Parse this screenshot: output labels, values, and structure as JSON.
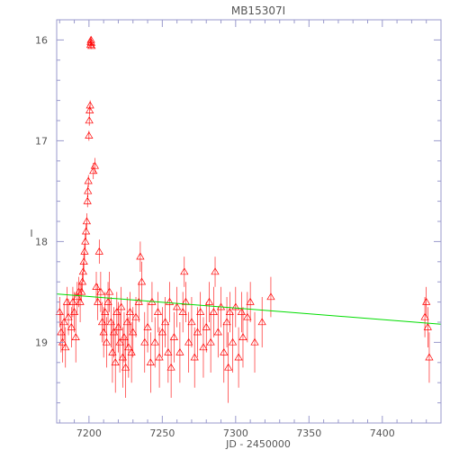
{
  "chart_data": {
    "type": "scatter",
    "title": "MB15307I",
    "xlabel": "JD - 2450000",
    "ylabel": "I",
    "xlim": [
      7178,
      7440
    ],
    "ylim": [
      19.8,
      15.8
    ],
    "y_inverted": true,
    "x_ticks": [
      7200,
      7250,
      7300,
      7350,
      7400
    ],
    "y_ticks": [
      16,
      17,
      18,
      19
    ],
    "grid": false,
    "legend": "none",
    "colors": {
      "points": "#ff0000",
      "trend": "#00dd00",
      "axes": "#9999cc",
      "text": "#555555"
    },
    "trend_line": {
      "x": [
        7178,
        7440
      ],
      "y": [
        18.52,
        18.82
      ]
    },
    "series": [
      {
        "marker": "triangle-open",
        "points": [
          [
            7180,
            18.7,
            0.15
          ],
          [
            7181,
            18.9,
            0.2
          ],
          [
            7182,
            19.0,
            0.2
          ],
          [
            7183,
            18.8,
            0.18
          ],
          [
            7184,
            19.05,
            0.2
          ],
          [
            7185,
            18.6,
            0.15
          ],
          [
            7186,
            18.75,
            0.18
          ],
          [
            7188,
            18.85,
            0.2
          ],
          [
            7189,
            18.6,
            0.15
          ],
          [
            7190,
            18.7,
            0.2
          ],
          [
            7191,
            18.95,
            0.25
          ],
          [
            7192,
            18.55,
            0.15
          ],
          [
            7193,
            18.5,
            0.15
          ],
          [
            7194,
            18.6,
            0.2
          ],
          [
            7195,
            18.5,
            0.1
          ],
          [
            7195.5,
            18.4,
            0.1
          ],
          [
            7196,
            18.3,
            0.1
          ],
          [
            7196.5,
            18.2,
            0.1
          ],
          [
            7197,
            18.1,
            0.08
          ],
          [
            7197.5,
            18.0,
            0.08
          ],
          [
            7198,
            17.9,
            0.08
          ],
          [
            7198.5,
            17.8,
            0.08
          ],
          [
            7199,
            17.6,
            0.06
          ],
          [
            7199.3,
            17.5,
            0.06
          ],
          [
            7199.6,
            17.4,
            0.06
          ],
          [
            7200,
            16.95,
            0.05
          ],
          [
            7200.2,
            16.8,
            0.05
          ],
          [
            7200.5,
            16.7,
            0.05
          ],
          [
            7200.8,
            16.65,
            0.05
          ],
          [
            7201,
            16.05,
            0.03
          ],
          [
            7201.2,
            16.02,
            0.03
          ],
          [
            7201.4,
            16.0,
            0.03
          ],
          [
            7201.6,
            16.03,
            0.03
          ],
          [
            7201.8,
            16.06,
            0.03
          ],
          [
            7203,
            17.3,
            0.08
          ],
          [
            7204,
            17.25,
            0.08
          ],
          [
            7205,
            18.45,
            0.15
          ],
          [
            7206,
            18.6,
            0.18
          ],
          [
            7207,
            18.1,
            0.12
          ],
          [
            7208,
            18.5,
            0.2
          ],
          [
            7209,
            18.8,
            0.2
          ],
          [
            7210,
            18.9,
            0.25
          ],
          [
            7211,
            18.7,
            0.2
          ],
          [
            7212,
            19.0,
            0.25
          ],
          [
            7213,
            18.6,
            0.2
          ],
          [
            7214,
            18.5,
            0.2
          ],
          [
            7215,
            18.8,
            0.25
          ],
          [
            7216,
            19.1,
            0.3
          ],
          [
            7217,
            18.9,
            0.25
          ],
          [
            7218,
            19.2,
            0.3
          ],
          [
            7219,
            18.7,
            0.2
          ],
          [
            7220,
            18.85,
            0.25
          ],
          [
            7221,
            19.0,
            0.3
          ],
          [
            7222,
            18.65,
            0.2
          ],
          [
            7223,
            19.15,
            0.3
          ],
          [
            7224,
            18.95,
            0.25
          ],
          [
            7225,
            19.25,
            0.3
          ],
          [
            7226,
            18.8,
            0.25
          ],
          [
            7227,
            19.05,
            0.3
          ],
          [
            7228,
            18.7,
            0.2
          ],
          [
            7229,
            19.1,
            0.3
          ],
          [
            7230,
            18.9,
            0.25
          ],
          [
            7232,
            18.75,
            0.2
          ],
          [
            7234,
            18.6,
            0.2
          ],
          [
            7235,
            18.15,
            0.15
          ],
          [
            7236,
            18.4,
            0.2
          ],
          [
            7238,
            19.0,
            0.3
          ],
          [
            7240,
            18.85,
            0.25
          ],
          [
            7242,
            19.2,
            0.3
          ],
          [
            7243,
            18.6,
            0.2
          ],
          [
            7245,
            19.0,
            0.25
          ],
          [
            7247,
            18.7,
            0.2
          ],
          [
            7248,
            19.15,
            0.3
          ],
          [
            7250,
            18.9,
            0.25
          ],
          [
            7252,
            18.8,
            0.25
          ],
          [
            7254,
            19.1,
            0.3
          ],
          [
            7255,
            18.6,
            0.2
          ],
          [
            7256,
            19.25,
            0.3
          ],
          [
            7258,
            18.95,
            0.25
          ],
          [
            7260,
            18.65,
            0.2
          ],
          [
            7262,
            19.1,
            0.3
          ],
          [
            7264,
            18.7,
            0.2
          ],
          [
            7265,
            18.3,
            0.15
          ],
          [
            7266,
            18.6,
            0.2
          ],
          [
            7268,
            19.0,
            0.3
          ],
          [
            7270,
            18.8,
            0.25
          ],
          [
            7272,
            19.15,
            0.3
          ],
          [
            7274,
            18.9,
            0.25
          ],
          [
            7276,
            18.7,
            0.2
          ],
          [
            7278,
            19.05,
            0.3
          ],
          [
            7280,
            18.85,
            0.25
          ],
          [
            7282,
            18.6,
            0.2
          ],
          [
            7283,
            19.0,
            0.3
          ],
          [
            7285,
            18.7,
            0.25
          ],
          [
            7286,
            18.3,
            0.15
          ],
          [
            7288,
            18.9,
            0.25
          ],
          [
            7290,
            18.65,
            0.2
          ],
          [
            7292,
            19.1,
            0.3
          ],
          [
            7294,
            18.8,
            0.25
          ],
          [
            7295,
            19.25,
            0.35
          ],
          [
            7296,
            18.7,
            0.2
          ],
          [
            7298,
            19.0,
            0.3
          ],
          [
            7300,
            18.65,
            0.2
          ],
          [
            7302,
            19.15,
            0.3
          ],
          [
            7304,
            18.7,
            0.2
          ],
          [
            7305,
            18.95,
            0.3
          ],
          [
            7308,
            18.75,
            0.25
          ],
          [
            7310,
            18.6,
            0.2
          ],
          [
            7313,
            19.0,
            0.3
          ],
          [
            7318,
            18.8,
            0.25
          ],
          [
            7324,
            18.55,
            0.2
          ],
          [
            7429,
            18.75,
            0.2
          ],
          [
            7430,
            18.6,
            0.15
          ],
          [
            7431,
            18.85,
            0.2
          ],
          [
            7432,
            19.15,
            0.25
          ]
        ]
      }
    ]
  }
}
